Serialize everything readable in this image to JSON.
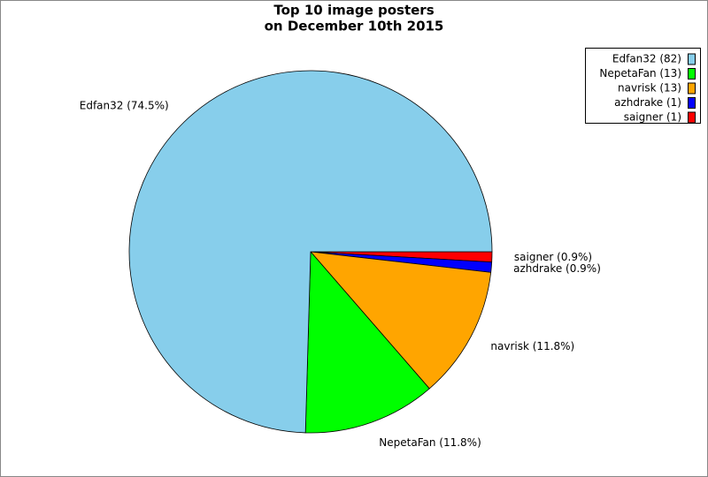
{
  "chart_data": {
    "type": "pie",
    "title": "Top 10 image posters",
    "subtitle": "on December 10th 2015",
    "categories": [
      "Edfan32 (82)",
      "NepetaFan (13)",
      "navrisk (13)",
      "azhdrake (1)",
      "saigner (1)"
    ],
    "values": [
      82,
      13,
      13,
      1,
      1
    ],
    "slice_labels": [
      "Edfan32 (74.5%)",
      "NepetaFan (11.8%)",
      "navrisk (11.8%)",
      "azhdrake (0.9%)",
      "saigner (0.9%)"
    ],
    "colors": [
      "#87ceeb",
      "#00ff00",
      "#ffa500",
      "#0000ff",
      "#ff0000"
    ],
    "legend": "upper right"
  }
}
